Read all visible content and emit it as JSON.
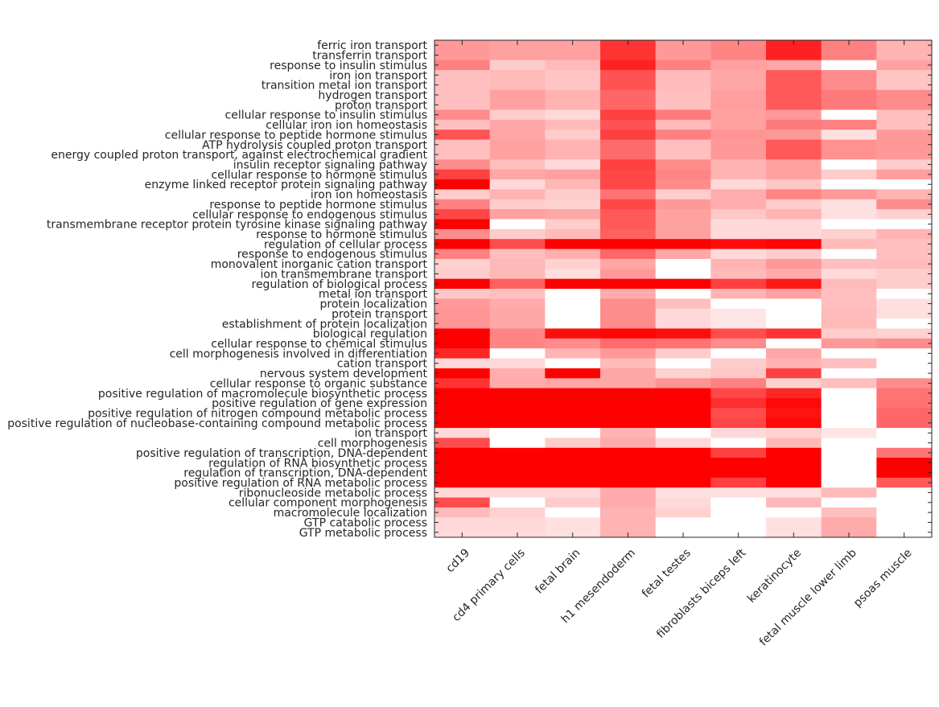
{
  "chart_data": {
    "type": "heatmap",
    "title": "",
    "xlabel": "",
    "ylabel": "",
    "color_scale": {
      "low": "#ffffff",
      "high": "#ff0000",
      "range": [
        0,
        1
      ]
    },
    "columns": [
      "cd19",
      "cd4 primary cells",
      "fetal brain",
      "h1 mesendoderm",
      "fetal testes",
      "fibroblasts biceps left",
      "keratinocyte",
      "fetal muscle lower limb",
      "psoas muscle"
    ],
    "rows": [
      "ferric iron transport",
      "transferrin transport",
      "response to insulin stimulus",
      "iron ion transport",
      "transition metal ion transport",
      "hydrogen transport",
      "proton transport",
      "cellular response to insulin stimulus",
      "cellular iron ion homeostasis",
      "cellular response to peptide hormone stimulus",
      "ATP hydrolysis coupled proton transport",
      "energy coupled proton transport, against electrochemical gradient",
      "insulin receptor signaling pathway",
      "cellular response to hormone stimulus",
      "enzyme linked receptor protein signaling pathway",
      "iron ion homeostasis",
      "response to peptide hormone stimulus",
      "cellular response to endogenous stimulus",
      "transmembrane receptor protein tyrosine kinase signaling pathway",
      "response to hormone stimulus",
      "regulation of cellular process",
      "response to endogenous stimulus",
      "monovalent inorganic cation transport",
      "ion transmembrane transport",
      "regulation of biological process",
      "metal ion transport",
      "protein localization",
      "protein transport",
      "establishment of protein localization",
      "biological regulation",
      "cellular response to chemical stimulus",
      "cell morphogenesis involved in differentiation",
      "cation transport",
      "nervous system development",
      "cellular response to organic substance",
      "positive regulation of macromolecule biosynthetic process",
      "positive regulation of gene expression",
      "positive regulation of nitrogen compound metabolic process",
      "positive regulation of nucleobase-containing compound metabolic process",
      "ion transport",
      "cell morphogenesis",
      "positive regulation of transcription, DNA-dependent",
      "regulation of RNA biosynthetic process",
      "regulation of transcription, DNA-dependent",
      "positive regulation of RNA metabolic process",
      "ribonucleoside metabolic process",
      "cellular component morphogenesis",
      "macromolecule localization",
      "GTP catabolic process",
      "GTP metabolic process"
    ],
    "values": [
      [
        0.4,
        0.37,
        0.37,
        0.8,
        0.4,
        0.48,
        0.87,
        0.5,
        0.3
      ],
      [
        0.4,
        0.37,
        0.37,
        0.8,
        0.4,
        0.48,
        0.87,
        0.5,
        0.3
      ],
      [
        0.5,
        0.2,
        0.27,
        0.87,
        0.5,
        0.37,
        0.35,
        0,
        0.37
      ],
      [
        0.25,
        0.27,
        0.23,
        0.68,
        0.27,
        0.35,
        0.65,
        0.45,
        0.23
      ],
      [
        0.25,
        0.27,
        0.23,
        0.68,
        0.27,
        0.35,
        0.65,
        0.45,
        0.23
      ],
      [
        0.25,
        0.37,
        0.3,
        0.6,
        0.25,
        0.38,
        0.65,
        0.52,
        0.45
      ],
      [
        0.25,
        0.37,
        0.3,
        0.6,
        0.25,
        0.38,
        0.65,
        0.52,
        0.45
      ],
      [
        0.45,
        0.2,
        0.15,
        0.75,
        0.52,
        0.37,
        0.4,
        0,
        0.25
      ],
      [
        0.25,
        0.35,
        0.27,
        0.68,
        0.27,
        0.37,
        0.52,
        0.5,
        0.25
      ],
      [
        0.68,
        0.35,
        0.2,
        0.75,
        0.5,
        0.42,
        0.4,
        0.12,
        0.4
      ],
      [
        0.25,
        0.37,
        0.3,
        0.58,
        0.25,
        0.4,
        0.65,
        0.43,
        0.4
      ],
      [
        0.25,
        0.37,
        0.3,
        0.58,
        0.25,
        0.4,
        0.65,
        0.43,
        0.4
      ],
      [
        0.45,
        0.25,
        0.15,
        0.75,
        0.45,
        0.3,
        0.37,
        0,
        0.2
      ],
      [
        0.75,
        0.35,
        0.37,
        0.72,
        0.48,
        0.3,
        0.37,
        0.2,
        0.38
      ],
      [
        1.0,
        0.15,
        0.28,
        0.72,
        0.45,
        0.15,
        0.22,
        0,
        0
      ],
      [
        0.2,
        0.3,
        0.2,
        0.55,
        0.2,
        0.32,
        0.48,
        0.4,
        0.3
      ],
      [
        0.5,
        0.2,
        0.18,
        0.72,
        0.4,
        0.32,
        0.2,
        0.12,
        0.45
      ],
      [
        0.72,
        0.37,
        0.35,
        0.65,
        0.37,
        0.22,
        0.3,
        0.12,
        0.18
      ],
      [
        1.0,
        0,
        0.2,
        0.65,
        0.37,
        0.15,
        0.15,
        0,
        0
      ],
      [
        0.45,
        0.2,
        0.27,
        0.62,
        0.37,
        0.15,
        0.15,
        0.18,
        0.3
      ],
      [
        1.0,
        0.7,
        1.0,
        1.0,
        1.0,
        0.95,
        0.98,
        0.27,
        0.25
      ],
      [
        0.5,
        0.25,
        0.32,
        0.6,
        0.35,
        0.15,
        0.2,
        0,
        0.25
      ],
      [
        0.18,
        0.28,
        0.18,
        0.35,
        0,
        0.3,
        0.4,
        0.25,
        0.27
      ],
      [
        0.2,
        0.28,
        0.13,
        0.4,
        0,
        0.27,
        0.33,
        0.15,
        0.2
      ],
      [
        1.0,
        0.62,
        1.0,
        1.0,
        1.0,
        0.75,
        0.9,
        0.27,
        0.2
      ],
      [
        0.22,
        0.25,
        0,
        0.33,
        0,
        0.3,
        0.37,
        0.25,
        0
      ],
      [
        0.4,
        0.33,
        0,
        0.45,
        0.25,
        0,
        0,
        0.25,
        0.12
      ],
      [
        0.42,
        0.35,
        0,
        0.45,
        0.15,
        0.1,
        0,
        0.27,
        0.12
      ],
      [
        0.42,
        0.35,
        0,
        0.45,
        0.15,
        0.1,
        0,
        0.27,
        0
      ],
      [
        1.0,
        0.48,
        0.95,
        0.98,
        0.95,
        0.7,
        0.8,
        0.2,
        0.18
      ],
      [
        1.0,
        0.48,
        0.45,
        0.58,
        0.55,
        0.45,
        0,
        0.4,
        0.45
      ],
      [
        0.85,
        0,
        0.3,
        0.4,
        0.2,
        0,
        0.35,
        0,
        0
      ],
      [
        0.15,
        0.15,
        0,
        0.27,
        0,
        0.2,
        0.3,
        0.25,
        0
      ],
      [
        1.0,
        0.32,
        1.0,
        0.35,
        0.18,
        0.22,
        0.75,
        0,
        0
      ],
      [
        0.8,
        0.33,
        0.35,
        0.35,
        0.42,
        0.5,
        0.18,
        0.25,
        0.45
      ],
      [
        1,
        1,
        1,
        1,
        1,
        0.72,
        0.85,
        0,
        0.55
      ],
      [
        1,
        1,
        1,
        1,
        1,
        0.82,
        0.97,
        0,
        0.55
      ],
      [
        1,
        1,
        1,
        1,
        1,
        0.7,
        0.93,
        0,
        0.6
      ],
      [
        1,
        1,
        1,
        1,
        1,
        0.72,
        0.97,
        0,
        0.6
      ],
      [
        0.15,
        0,
        0,
        0.3,
        0,
        0.15,
        0.18,
        0.1,
        0
      ],
      [
        0.7,
        0,
        0.2,
        0.33,
        0.15,
        0,
        0.28,
        0,
        0
      ],
      [
        1,
        1,
        1,
        1,
        1,
        0.75,
        1,
        0,
        0.55
      ],
      [
        1,
        1,
        1,
        1,
        1,
        1,
        1,
        0,
        1
      ],
      [
        1,
        1,
        1,
        1,
        1,
        1,
        1,
        0,
        1
      ],
      [
        1,
        1,
        1,
        1,
        1,
        0.75,
        1,
        0,
        0.65
      ],
      [
        0.15,
        0.15,
        0.15,
        0.33,
        0.12,
        0.12,
        0.12,
        0.27,
        0
      ],
      [
        0.7,
        0,
        0.2,
        0.33,
        0.15,
        0,
        0.28,
        0,
        0
      ],
      [
        0.27,
        0.18,
        0,
        0.3,
        0.18,
        0,
        0,
        0.25,
        0
      ],
      [
        0.15,
        0.15,
        0.12,
        0.3,
        0,
        0,
        0.12,
        0.33,
        0
      ],
      [
        0.15,
        0.15,
        0.12,
        0.3,
        0,
        0,
        0.12,
        0.33,
        0
      ]
    ],
    "grid": false,
    "legend": "none"
  }
}
